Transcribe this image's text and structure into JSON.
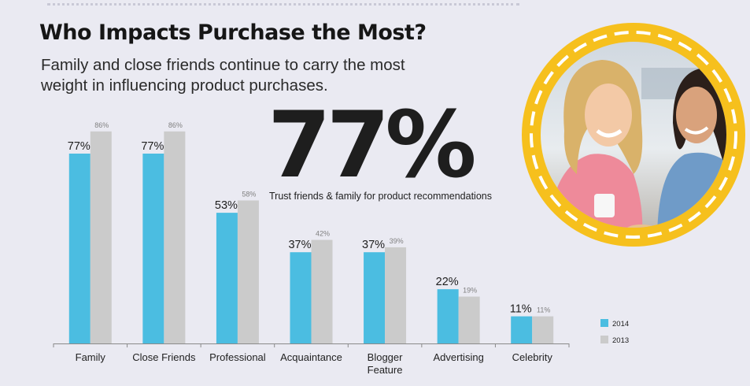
{
  "header": {
    "title": "Who Impacts Purchase the Most?",
    "subtitle": "Family and close friends continue to carry the most weight in influencing product purchases."
  },
  "highlight": {
    "value": "77%",
    "caption": "Trust friends & family for product recommendations"
  },
  "photo": {
    "description_icon": "two-women-talking-photo"
  },
  "colors": {
    "series_2014": "#4bbde1",
    "series_2013": "#cbcbcb",
    "frame_yellow": "#f6c01d"
  },
  "chart_data": {
    "type": "bar",
    "categories": [
      "Family",
      "Close Friends",
      "Professional",
      "Acquaintance",
      "Blogger Feature",
      "Advertising",
      "Celebrity"
    ],
    "category_lines": [
      [
        "Family"
      ],
      [
        "Close Friends"
      ],
      [
        "Professional"
      ],
      [
        "Acquaintance"
      ],
      [
        "Blogger",
        "Feature"
      ],
      [
        "Advertising"
      ],
      [
        "Celebrity"
      ]
    ],
    "series": [
      {
        "name": "2014",
        "values": [
          77,
          77,
          53,
          37,
          37,
          22,
          11
        ],
        "labels": [
          "77%",
          "77%",
          "53%",
          "37%",
          "37%",
          "22%",
          "11%"
        ]
      },
      {
        "name": "2013",
        "values": [
          86,
          86,
          58,
          42,
          39,
          19,
          11
        ],
        "labels": [
          "86%",
          "86%",
          "58%",
          "42%",
          "39%",
          "19%",
          "11%"
        ]
      }
    ],
    "ylim": [
      0,
      100
    ],
    "legend": [
      "2014",
      "2013"
    ],
    "legend_position": "bottom-right",
    "title": "",
    "xlabel": "",
    "ylabel": ""
  }
}
